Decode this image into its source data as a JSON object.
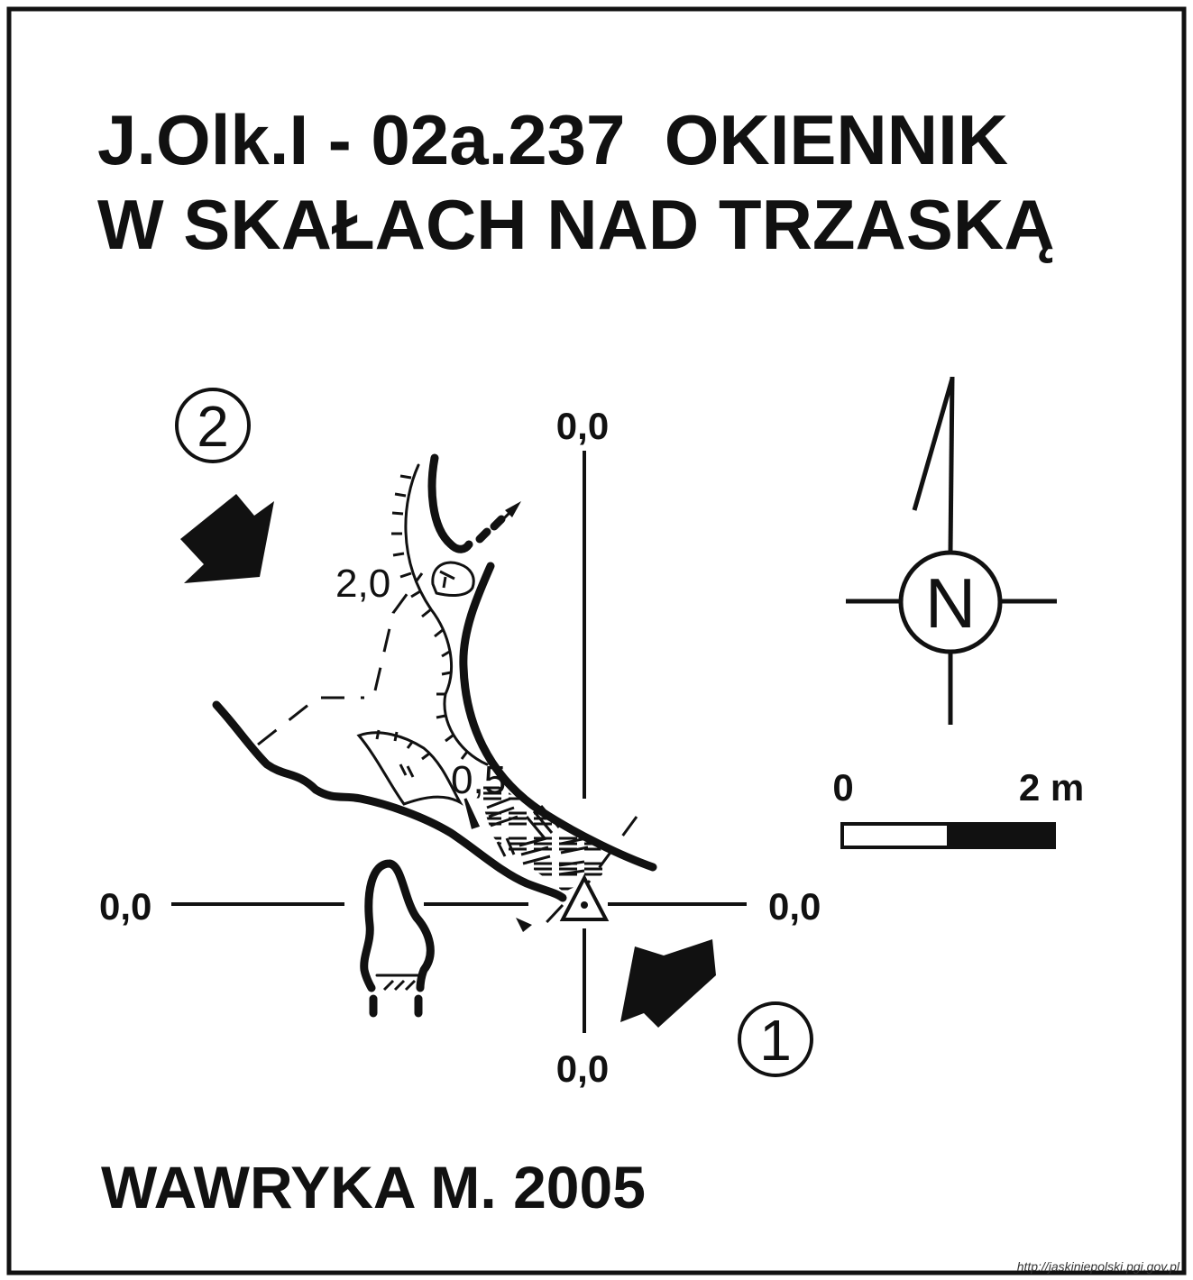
{
  "map": {
    "title_line1": "J.Olk.I - 02a.237  OKIENNIK",
    "title_line2": "W SKAŁACH NAD TRZASKĄ",
    "author": "WAWRYKA M. 2005",
    "credit_url": "http://jaskiniepolski.pgi.gov.pl",
    "section_labels": {
      "top": "0,0",
      "bottom": "0,0",
      "left": "0,0",
      "right": "0,0"
    },
    "depth_labels": [
      "2,0",
      "0,5"
    ],
    "scale_bar": {
      "start_label": "0",
      "end_label": "2 m"
    },
    "north_symbol": "N",
    "entrance_markers": [
      "2",
      "1"
    ],
    "colors": {
      "ink": "#111111",
      "paper": "#ffffff"
    }
  }
}
